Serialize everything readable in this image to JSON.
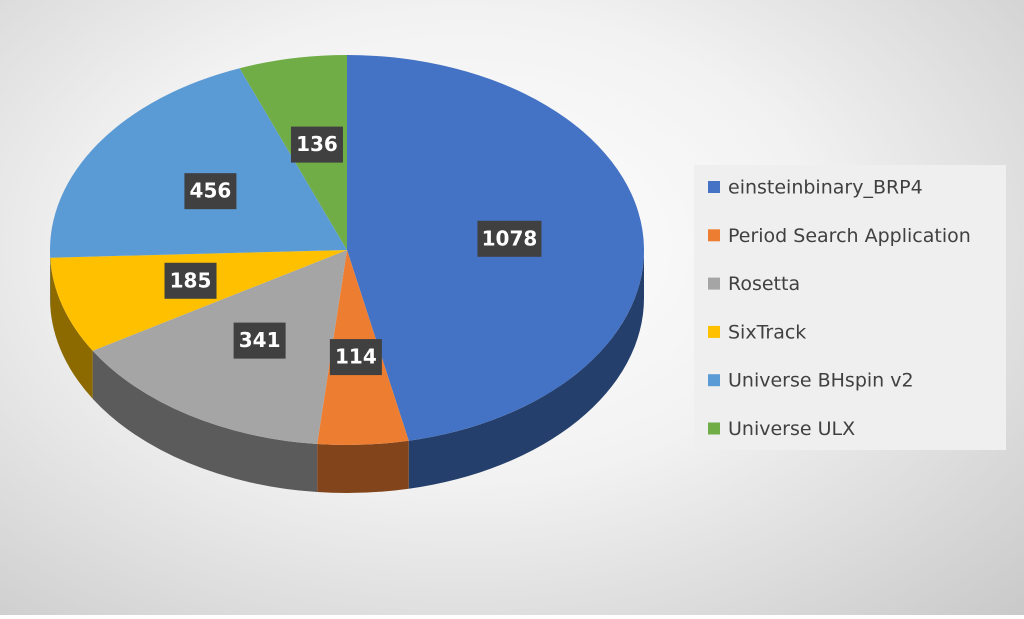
{
  "chart_data": {
    "type": "pie3d",
    "categories": [
      "einsteinbinary_BRP4",
      "Period Search Application",
      "Rosetta",
      "SixTrack",
      "Universe BHspin v2",
      "Universe ULX"
    ],
    "values": [
      1078,
      114,
      341,
      185,
      456,
      136
    ],
    "colors": [
      "#4472c4",
      "#ed7d31",
      "#a5a5a5",
      "#ffc000",
      "#5b9bd5",
      "#70ad47"
    ],
    "legend": "right"
  }
}
